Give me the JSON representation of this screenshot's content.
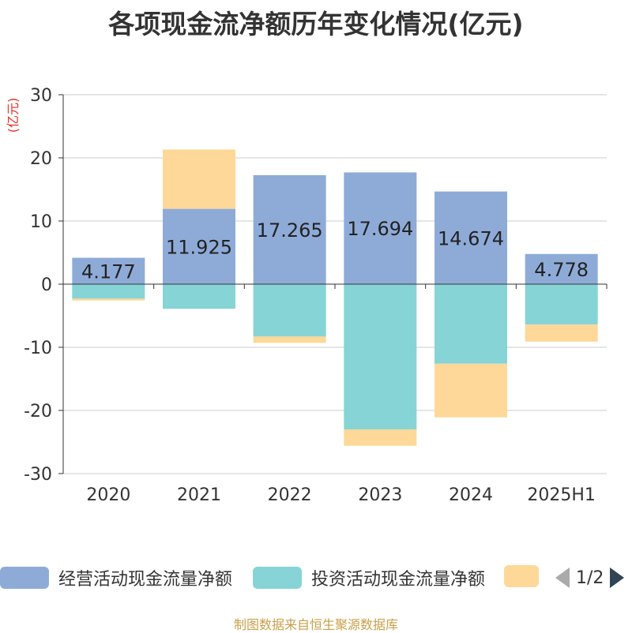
{
  "title": "各项现金流净额历年变化情况(亿元)",
  "footer": "制图数据来自恒生聚源数据库",
  "pager_text": "1/2",
  "chart_data": {
    "type": "bar",
    "stacked": true,
    "categories": [
      "2020",
      "2021",
      "2022",
      "2023",
      "2024",
      "2025H1"
    ],
    "ylabel": "(亿元)",
    "ylim": [
      -30,
      30
    ],
    "yticks": [
      30,
      20,
      10,
      0,
      -10,
      -20,
      -30
    ],
    "grid": true,
    "legend_position": "bottom",
    "series": [
      {
        "name": "经营活动现金流量净额",
        "color": "#8eabd8",
        "values": [
          4.177,
          11.925,
          17.265,
          17.694,
          14.674,
          4.778
        ],
        "labels": [
          "4.177",
          "11.925",
          "17.265",
          "17.694",
          "14.674",
          "4.778"
        ]
      },
      {
        "name": "投资活动现金流量净额",
        "color": "#86d4d6",
        "values": [
          -2.3,
          -3.9,
          -8.3,
          -23.0,
          -12.6,
          -6.4
        ]
      },
      {
        "name": "",
        "color": "#fdd898",
        "values": [
          -0.3,
          9.4,
          -1.0,
          -2.6,
          -8.5,
          -2.7
        ]
      }
    ]
  },
  "icons": {
    "prev": "triangle-left-icon",
    "next": "triangle-right-icon"
  }
}
